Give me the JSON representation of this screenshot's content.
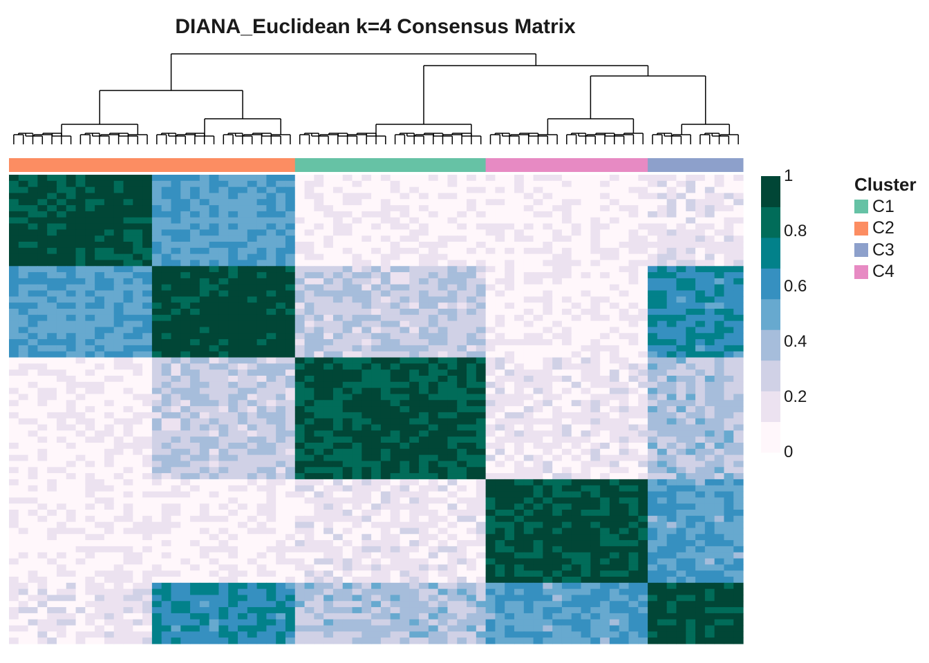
{
  "chart_data": {
    "type": "heatmap",
    "title": "DIANA_Euclidean k=4 Consensus Matrix",
    "clusters": [
      {
        "name": "C2",
        "color": "#FC8D62",
        "size": 30
      },
      {
        "name": "C1",
        "color": "#66C2A5",
        "size": 20
      },
      {
        "name": "C4",
        "color": "#E78AC3",
        "size": 17
      },
      {
        "name": "C3",
        "color": "#8DA0CB",
        "size": 10
      }
    ],
    "sub_groups": [
      15,
      15,
      20,
      17,
      10
    ],
    "group_matrix": [
      [
        0.95,
        0.55,
        0.08,
        0.08,
        0.15
      ],
      [
        0.55,
        0.95,
        0.3,
        0.08,
        0.65
      ],
      [
        0.08,
        0.3,
        0.9,
        0.15,
        0.35
      ],
      [
        0.08,
        0.08,
        0.15,
        0.92,
        0.55
      ],
      [
        0.15,
        0.65,
        0.35,
        0.55,
        0.95
      ]
    ],
    "colorbar": {
      "min": 0,
      "max": 1,
      "ticks": [
        "1",
        "0.8",
        "0.6",
        "0.4",
        "0.2",
        "0"
      ],
      "colors": [
        "#FFF7FB",
        "#ECE2F0",
        "#D0D1E6",
        "#A6BDDB",
        "#67A9CF",
        "#3690C0",
        "#02818A",
        "#016C59",
        "#014636"
      ]
    },
    "legend": {
      "title": "Cluster",
      "items": [
        {
          "label": "C1",
          "color": "#66C2A5"
        },
        {
          "label": "C2",
          "color": "#FC8D62"
        },
        {
          "label": "C3",
          "color": "#8DA0CB"
        },
        {
          "label": "C4",
          "color": "#E78AC3"
        }
      ]
    }
  }
}
